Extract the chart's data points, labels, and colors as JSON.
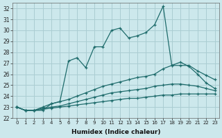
{
  "xlabel": "Humidex (Indice chaleur)",
  "bg_color": "#cce8ec",
  "grid_color": "#aacdd2",
  "line_color": "#1e6b6b",
  "xlim": [
    -0.5,
    23.5
  ],
  "ylim": [
    22,
    32.5
  ],
  "yticks": [
    22,
    23,
    24,
    25,
    26,
    27,
    28,
    29,
    30,
    31,
    32
  ],
  "xticks": [
    0,
    1,
    2,
    3,
    4,
    5,
    6,
    7,
    8,
    9,
    10,
    11,
    12,
    13,
    14,
    15,
    16,
    17,
    18,
    19,
    20,
    21,
    22,
    23
  ],
  "line_jagged_x": [
    0,
    1,
    2,
    3,
    4,
    5,
    6,
    7,
    8,
    9,
    10,
    11,
    12,
    13,
    14,
    15,
    16,
    17,
    18,
    19,
    20,
    21,
    22,
    23
  ],
  "line_jagged_y": [
    23.0,
    22.7,
    22.7,
    22.7,
    23.3,
    23.5,
    27.2,
    27.5,
    26.6,
    28.5,
    28.5,
    30.0,
    30.2,
    29.3,
    29.5,
    29.8,
    30.5,
    32.2,
    26.8,
    27.1,
    26.7,
    26.0,
    25.2,
    24.7
  ],
  "line_upper_x": [
    0,
    1,
    2,
    3,
    4,
    5,
    6,
    7,
    8,
    9,
    10,
    11,
    12,
    13,
    14,
    15,
    16,
    17,
    18,
    19,
    20,
    21,
    22,
    23
  ],
  "line_upper_y": [
    23.0,
    22.7,
    22.7,
    23.0,
    23.3,
    23.5,
    23.7,
    24.0,
    24.3,
    24.6,
    24.9,
    25.1,
    25.3,
    25.5,
    25.7,
    25.8,
    26.0,
    26.5,
    26.8,
    26.8,
    26.8,
    26.3,
    25.9,
    25.5
  ],
  "line_mid_x": [
    0,
    1,
    2,
    3,
    4,
    5,
    6,
    7,
    8,
    9,
    10,
    11,
    12,
    13,
    14,
    15,
    16,
    17,
    18,
    19,
    20,
    21,
    22,
    23
  ],
  "line_mid_y": [
    23.0,
    22.7,
    22.7,
    22.9,
    23.0,
    23.1,
    23.3,
    23.5,
    23.7,
    23.9,
    24.1,
    24.3,
    24.4,
    24.5,
    24.6,
    24.7,
    24.9,
    25.0,
    25.1,
    25.1,
    25.0,
    24.9,
    24.7,
    24.5
  ],
  "line_lower_x": [
    0,
    1,
    2,
    3,
    4,
    5,
    6,
    7,
    8,
    9,
    10,
    11,
    12,
    13,
    14,
    15,
    16,
    17,
    18,
    19,
    20,
    21,
    22,
    23
  ],
  "line_lower_y": [
    23.0,
    22.7,
    22.7,
    22.8,
    22.9,
    23.0,
    23.1,
    23.2,
    23.3,
    23.4,
    23.5,
    23.6,
    23.7,
    23.8,
    23.8,
    23.9,
    24.0,
    24.1,
    24.1,
    24.2,
    24.2,
    24.2,
    24.2,
    24.2
  ]
}
